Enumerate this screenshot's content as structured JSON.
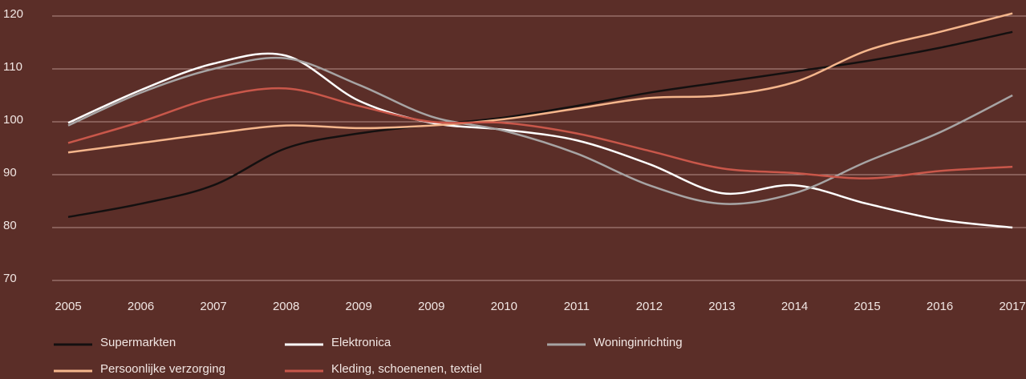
{
  "chart_data": {
    "type": "line",
    "categories": [
      "2005",
      "2006",
      "2007",
      "2008",
      "2009",
      "2009",
      "2010",
      "2011",
      "2012",
      "2013",
      "2014",
      "2015",
      "2016",
      "2017"
    ],
    "ylim": [
      70,
      120
    ],
    "yticks": [
      70,
      80,
      90,
      100,
      110,
      120
    ],
    "grid": true,
    "legend": "bottom",
    "series": [
      {
        "name": "Supermarkten",
        "color": "#141010",
        "values": [
          82,
          84.5,
          88,
          95,
          97.8,
          99.4,
          100.8,
          103,
          105.5,
          107.5,
          109.5,
          111.5,
          114,
          117
        ]
      },
      {
        "name": "Elektronica",
        "color": "#ffffff",
        "values": [
          99.8,
          106,
          111,
          112.5,
          104,
          99.8,
          98.5,
          96.5,
          92,
          86.5,
          88,
          84.5,
          81.5,
          80
        ]
      },
      {
        "name": "Woninginrichting",
        "color": "#a7a4a4",
        "values": [
          99.3,
          105.5,
          110,
          112,
          107,
          101,
          98.3,
          94,
          88,
          84.5,
          86.5,
          92.5,
          98,
          105
        ]
      },
      {
        "name": "Persoonlijke verzorging",
        "color": "#f5b68c",
        "values": [
          94.2,
          96,
          97.8,
          99.3,
          98.8,
          99.3,
          100.5,
          102.5,
          104.5,
          105,
          107.5,
          113.5,
          117,
          120.5
        ]
      },
      {
        "name": "Kleding, schoenenen, textiel",
        "color": "#c9574a",
        "values": [
          96,
          100,
          104.5,
          106.3,
          103,
          100,
          99.8,
          97.8,
          94.5,
          91.2,
          90.3,
          89.3,
          90.7,
          91.5
        ]
      }
    ]
  }
}
